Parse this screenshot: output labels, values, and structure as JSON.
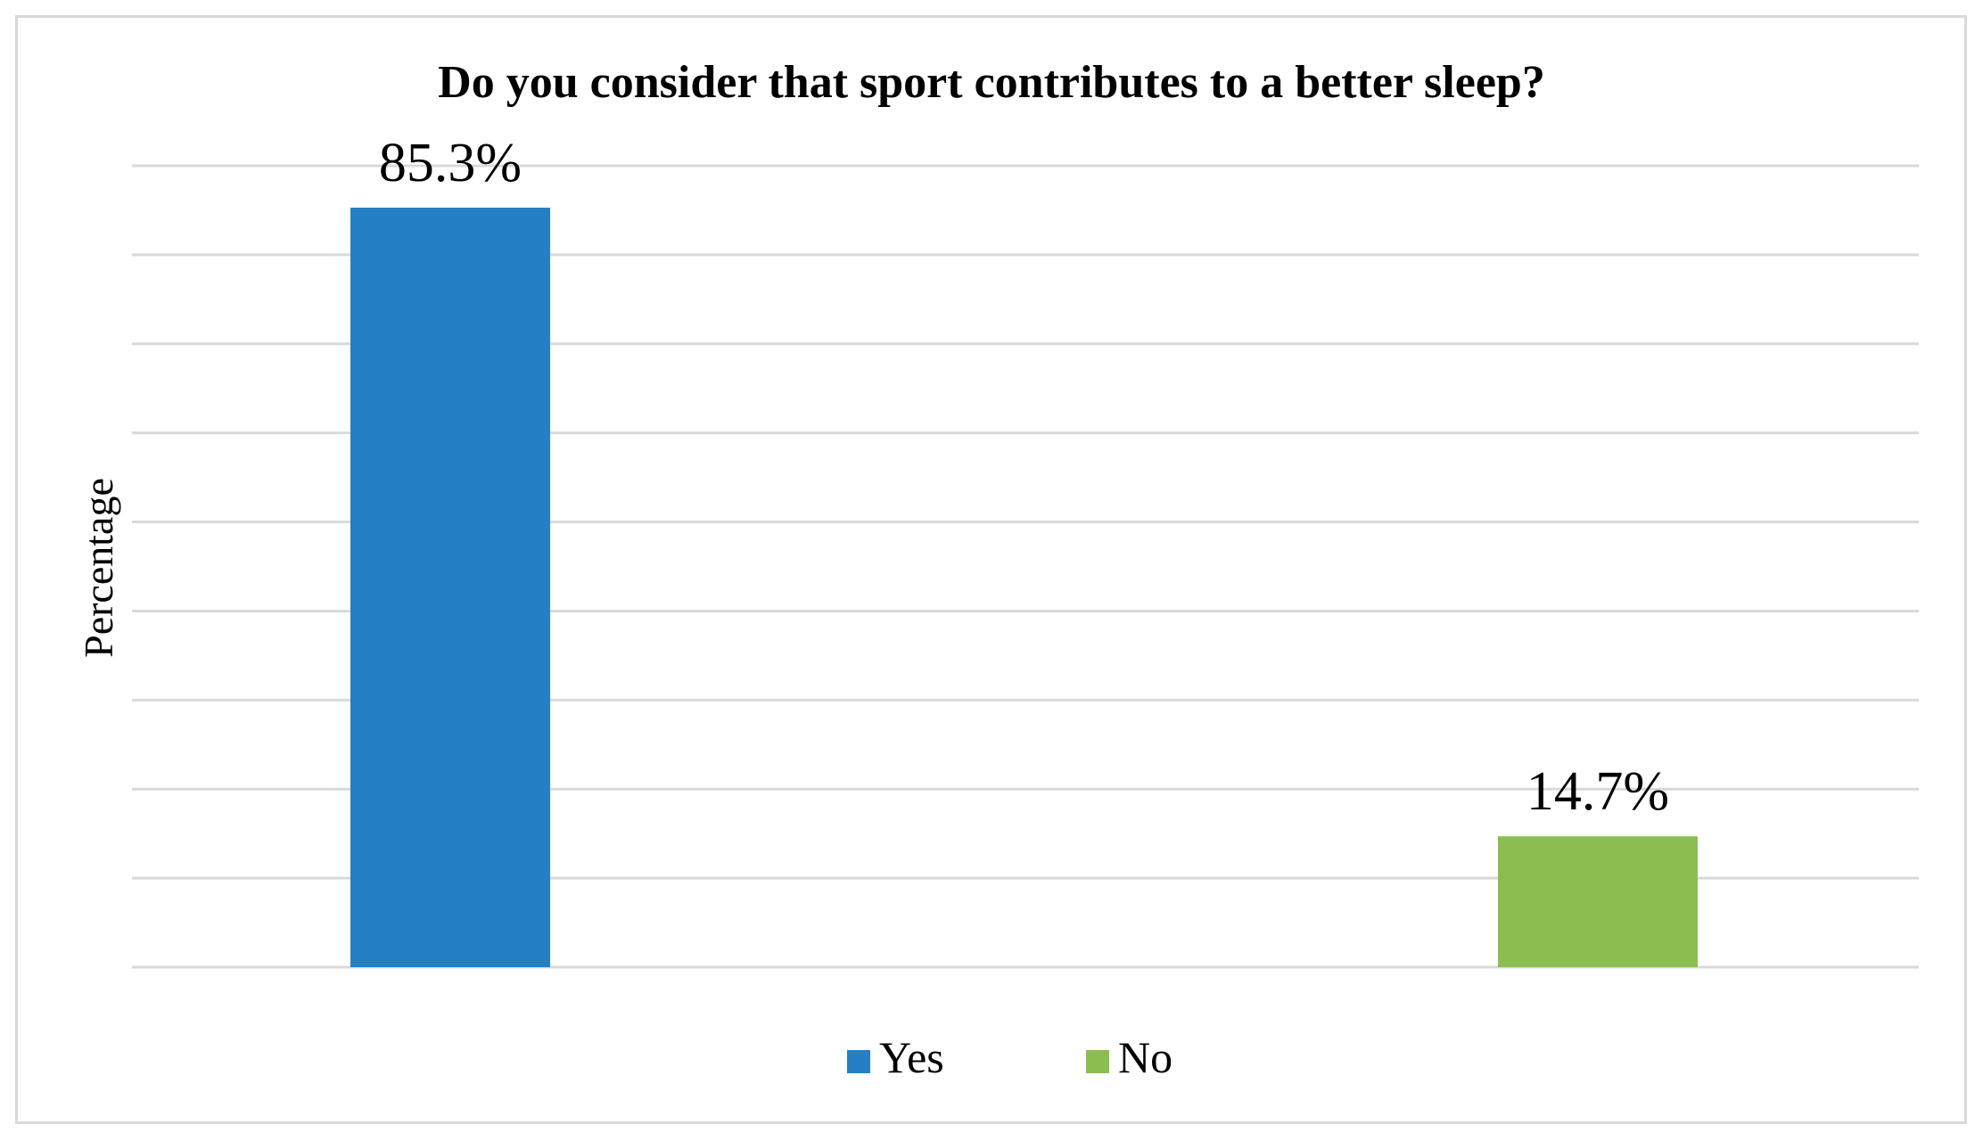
{
  "chart_data": {
    "type": "bar",
    "title": "Do you consider that sport contributes to a better sleep?",
    "xlabel": "",
    "ylabel": "Percentage",
    "categories": [
      "Yes",
      "No"
    ],
    "values": [
      85.3,
      14.7
    ],
    "data_labels": [
      "85.3%",
      "14.7%"
    ],
    "colors": [
      "#2580c3",
      "#8cbd51"
    ],
    "ylim": [
      0,
      90
    ],
    "grid": true,
    "gridline_color": "#d9d9d9",
    "legend": {
      "position": "bottom",
      "entries": [
        {
          "name": "Yes",
          "color": "#2580c3"
        },
        {
          "name": "No",
          "color": "#8cbd51"
        }
      ]
    }
  }
}
